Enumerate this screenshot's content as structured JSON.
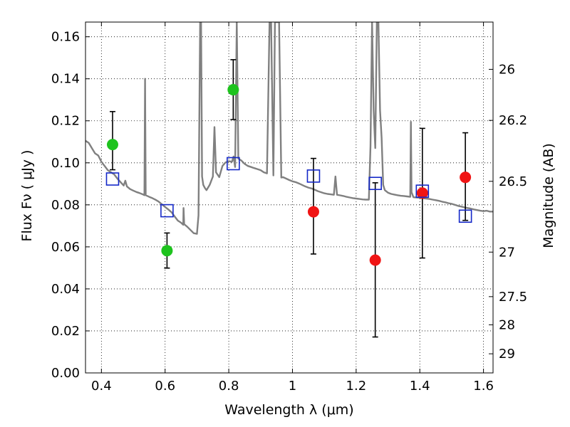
{
  "chart_data": {
    "type": "scatter",
    "xlabel": "Wavelength  λ (μm)",
    "ylabel": "Flux  Fν  ( μJy )",
    "y2label": "Magnitude (AB)",
    "xlim": [
      0.35,
      1.63
    ],
    "ylim": [
      0.0,
      0.167
    ],
    "x_ticks": [
      0.4,
      0.6,
      0.8,
      1.0,
      1.2,
      1.4,
      1.6
    ],
    "x_tick_labels": [
      "0.4",
      "0.6",
      "0.8",
      "1",
      "1.2",
      "1.4",
      "1.6"
    ],
    "y_ticks": [
      0.0,
      0.02,
      0.04,
      0.06,
      0.08,
      0.1,
      0.12,
      0.14,
      0.16
    ],
    "y_tick_labels": [
      "0.00",
      "0.02",
      "0.04",
      "0.06",
      "0.08",
      "0.10",
      "0.12",
      "0.14",
      "0.16"
    ],
    "y2_ticks": [
      {
        "label": "26",
        "flux": 0.1445
      },
      {
        "label": "26.2",
        "flux": 0.1202
      },
      {
        "label": "26.5",
        "flux": 0.0912
      },
      {
        "label": "27",
        "flux": 0.0575
      },
      {
        "label": "27.5",
        "flux": 0.0363
      },
      {
        "label": "28",
        "flux": 0.0229
      },
      {
        "label": "29",
        "flux": 0.0091
      }
    ],
    "grid": true,
    "colors": {
      "green": "#1ec31e",
      "red": "#f01414",
      "box": "#1428c8",
      "model": "#808080",
      "errorbar": "#000000"
    },
    "series": [
      {
        "style": "green-circles",
        "points": [
          {
            "x": 0.435,
            "y": 0.1087,
            "yerr_low": 0.0967,
            "yerr_high": 0.1244
          },
          {
            "x": 0.606,
            "y": 0.0582,
            "yerr_low": 0.0499,
            "yerr_high": 0.0666
          },
          {
            "x": 0.814,
            "y": 0.1348,
            "yerr_low": 0.1206,
            "yerr_high": 0.1491
          }
        ]
      },
      {
        "style": "red-circles",
        "points": [
          {
            "x": 1.066,
            "y": 0.0767,
            "yerr_low": 0.0566,
            "yerr_high": 0.1021
          },
          {
            "x": 1.26,
            "y": 0.0537,
            "yerr_low": 0.0171,
            "yerr_high": 0.0905
          },
          {
            "x": 1.408,
            "y": 0.0856,
            "yerr_low": 0.0547,
            "yerr_high": 0.1164
          },
          {
            "x": 1.543,
            "y": 0.0931,
            "yerr_low": 0.0726,
            "yerr_high": 0.1143
          }
        ]
      },
      {
        "style": "blue-open-squares",
        "points": [
          {
            "x": 0.435,
            "y": 0.0923
          },
          {
            "x": 0.606,
            "y": 0.0772
          },
          {
            "x": 0.814,
            "y": 0.0996
          },
          {
            "x": 1.066,
            "y": 0.0937
          },
          {
            "x": 1.26,
            "y": 0.0902
          },
          {
            "x": 1.408,
            "y": 0.0865
          },
          {
            "x": 1.543,
            "y": 0.0746
          }
        ]
      }
    ],
    "model_curve": {
      "style": "gray-line",
      "points": [
        [
          0.35,
          0.1105
        ],
        [
          0.36,
          0.1095
        ],
        [
          0.37,
          0.107
        ],
        [
          0.38,
          0.1045
        ],
        [
          0.39,
          0.1035
        ],
        [
          0.4,
          0.1005
        ],
        [
          0.41,
          0.0985
        ],
        [
          0.42,
          0.0965
        ],
        [
          0.43,
          0.0955
        ],
        [
          0.44,
          0.0945
        ],
        [
          0.45,
          0.0925
        ],
        [
          0.46,
          0.0908
        ],
        [
          0.47,
          0.0892
        ],
        [
          0.475,
          0.0915
        ],
        [
          0.48,
          0.0888
        ],
        [
          0.49,
          0.0875
        ],
        [
          0.5,
          0.0868
        ],
        [
          0.51,
          0.0861
        ],
        [
          0.52,
          0.0856
        ],
        [
          0.53,
          0.085
        ],
        [
          0.535,
          0.0846
        ],
        [
          0.537,
          0.14
        ],
        [
          0.539,
          0.0846
        ],
        [
          0.55,
          0.0838
        ],
        [
          0.56,
          0.0832
        ],
        [
          0.57,
          0.0824
        ],
        [
          0.58,
          0.0815
        ],
        [
          0.59,
          0.0802
        ],
        [
          0.6,
          0.079
        ],
        [
          0.61,
          0.0778
        ],
        [
          0.62,
          0.0765
        ],
        [
          0.63,
          0.0745
        ],
        [
          0.64,
          0.0725
        ],
        [
          0.65,
          0.0715
        ],
        [
          0.657,
          0.0705
        ],
        [
          0.658,
          0.0785
        ],
        [
          0.66,
          0.0708
        ],
        [
          0.67,
          0.0695
        ],
        [
          0.68,
          0.068
        ],
        [
          0.69,
          0.0665
        ],
        [
          0.7,
          0.0662
        ],
        [
          0.705,
          0.075
        ],
        [
          0.71,
          0.167
        ],
        [
          0.713,
          0.167
        ],
        [
          0.716,
          0.0935
        ],
        [
          0.72,
          0.0895
        ],
        [
          0.725,
          0.088
        ],
        [
          0.73,
          0.087
        ],
        [
          0.74,
          0.0895
        ],
        [
          0.75,
          0.0935
        ],
        [
          0.755,
          0.117
        ],
        [
          0.76,
          0.0955
        ],
        [
          0.77,
          0.0932
        ],
        [
          0.78,
          0.0985
        ],
        [
          0.79,
          0.1002
        ],
        [
          0.8,
          0.1008
        ],
        [
          0.81,
          0.1005
        ],
        [
          0.815,
          0.103
        ],
        [
          0.82,
          0.098
        ],
        [
          0.825,
          0.167
        ],
        [
          0.83,
          0.102
        ],
        [
          0.84,
          0.101
        ],
        [
          0.85,
          0.0995
        ],
        [
          0.86,
          0.0985
        ],
        [
          0.87,
          0.098
        ],
        [
          0.88,
          0.0975
        ],
        [
          0.89,
          0.097
        ],
        [
          0.9,
          0.0965
        ],
        [
          0.91,
          0.0955
        ],
        [
          0.92,
          0.095
        ],
        [
          0.928,
          0.167
        ],
        [
          0.933,
          0.167
        ],
        [
          0.94,
          0.094
        ],
        [
          0.945,
          0.167
        ],
        [
          0.95,
          0.167
        ],
        [
          0.958,
          0.167
        ],
        [
          0.965,
          0.093
        ],
        [
          0.97,
          0.0932
        ],
        [
          0.98,
          0.0925
        ],
        [
          0.99,
          0.0918
        ],
        [
          1.0,
          0.0912
        ],
        [
          1.01,
          0.0908
        ],
        [
          1.02,
          0.0902
        ],
        [
          1.03,
          0.0895
        ],
        [
          1.04,
          0.0888
        ],
        [
          1.05,
          0.0882
        ],
        [
          1.06,
          0.0878
        ],
        [
          1.07,
          0.0872
        ],
        [
          1.08,
          0.0865
        ],
        [
          1.09,
          0.086
        ],
        [
          1.1,
          0.0855
        ],
        [
          1.11,
          0.0852
        ],
        [
          1.12,
          0.085
        ],
        [
          1.13,
          0.0848
        ],
        [
          1.135,
          0.0935
        ],
        [
          1.14,
          0.0848
        ],
        [
          1.15,
          0.0845
        ],
        [
          1.16,
          0.0842
        ],
        [
          1.17,
          0.0838
        ],
        [
          1.18,
          0.0835
        ],
        [
          1.19,
          0.0832
        ],
        [
          1.2,
          0.083
        ],
        [
          1.21,
          0.0828
        ],
        [
          1.22,
          0.0826
        ],
        [
          1.23,
          0.0825
        ],
        [
          1.24,
          0.0825
        ],
        [
          1.245,
          0.108
        ],
        [
          1.25,
          0.167
        ],
        [
          1.255,
          0.125
        ],
        [
          1.26,
          0.107
        ],
        [
          1.265,
          0.167
        ],
        [
          1.27,
          0.167
        ],
        [
          1.275,
          0.125
        ],
        [
          1.28,
          0.112
        ],
        [
          1.285,
          0.0895
        ],
        [
          1.29,
          0.087
        ],
        [
          1.3,
          0.0858
        ],
        [
          1.31,
          0.0852
        ],
        [
          1.32,
          0.0849
        ],
        [
          1.33,
          0.0846
        ],
        [
          1.34,
          0.0843
        ],
        [
          1.35,
          0.0842
        ],
        [
          1.36,
          0.084
        ],
        [
          1.37,
          0.0838
        ],
        [
          1.372,
          0.1195
        ],
        [
          1.374,
          0.086
        ],
        [
          1.38,
          0.0836
        ],
        [
          1.39,
          0.0835
        ],
        [
          1.4,
          0.0834
        ],
        [
          1.41,
          0.0832
        ],
        [
          1.42,
          0.083
        ],
        [
          1.43,
          0.0828
        ],
        [
          1.44,
          0.0825
        ],
        [
          1.45,
          0.0822
        ],
        [
          1.46,
          0.0819
        ],
        [
          1.47,
          0.0815
        ],
        [
          1.48,
          0.0812
        ],
        [
          1.49,
          0.0808
        ],
        [
          1.5,
          0.0805
        ],
        [
          1.51,
          0.08
        ],
        [
          1.52,
          0.0795
        ],
        [
          1.53,
          0.0792
        ],
        [
          1.54,
          0.0788
        ],
        [
          1.55,
          0.0785
        ],
        [
          1.56,
          0.0782
        ],
        [
          1.57,
          0.0778
        ],
        [
          1.58,
          0.0775
        ],
        [
          1.59,
          0.0772
        ],
        [
          1.6,
          0.077
        ],
        [
          1.61,
          0.0772
        ],
        [
          1.62,
          0.0768
        ],
        [
          1.63,
          0.0768
        ]
      ]
    }
  }
}
